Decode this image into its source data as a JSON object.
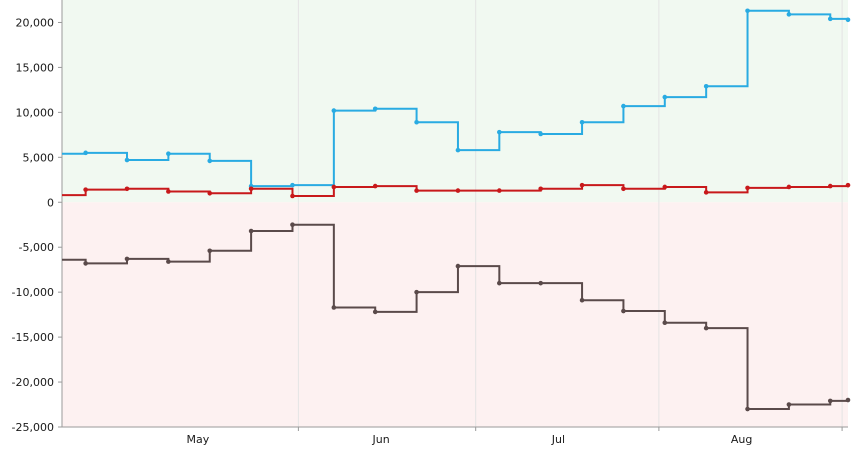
{
  "chart_data": {
    "type": "line",
    "line_shape": "step",
    "grid": true,
    "xlim": [
      "2015-04-22",
      "2015-09-02"
    ],
    "ylim": [
      -25000,
      22500
    ],
    "y_ticks": [
      -25000,
      -20000,
      -15000,
      -10000,
      -5000,
      0,
      5000,
      10000,
      15000,
      20000
    ],
    "y_tick_labels": [
      "-25,000",
      "-20,000",
      "-15,000",
      "-10,000",
      "-5,000",
      "0",
      "5,000",
      "10,000",
      "15,000",
      "20,000"
    ],
    "x_month_labels": [
      {
        "date": "2015-05-15",
        "label": "May"
      },
      {
        "date": "2015-06-15",
        "label": "Jun"
      },
      {
        "date": "2015-07-15",
        "label": "Jul"
      },
      {
        "date": "2015-08-15",
        "label": "Aug"
      }
    ],
    "x_month_boundaries": [
      "2015-06-01",
      "2015-07-01",
      "2015-08-01",
      "2015-09-01"
    ],
    "background_bands": [
      {
        "from": 0,
        "to": 22500,
        "color": "#f1f9f1"
      },
      {
        "from": -25000,
        "to": 0,
        "color": "#fdf1f1"
      }
    ],
    "x": [
      "2015-04-22",
      "2015-04-26",
      "2015-05-03",
      "2015-05-10",
      "2015-05-17",
      "2015-05-24",
      "2015-05-31",
      "2015-06-07",
      "2015-06-14",
      "2015-06-21",
      "2015-06-28",
      "2015-07-05",
      "2015-07-12",
      "2015-07-19",
      "2015-07-26",
      "2015-08-02",
      "2015-08-09",
      "2015-08-16",
      "2015-08-23",
      "2015-08-30",
      "2015-09-02"
    ],
    "series": [
      {
        "color": "#29abe2",
        "values": [
          5400,
          5500,
          4700,
          5400,
          4600,
          1800,
          1900,
          10200,
          10400,
          8900,
          5800,
          7800,
          7600,
          8900,
          10700,
          11700,
          12900,
          21300,
          20900,
          20400,
          20300
        ]
      },
      {
        "color": "#c8191b",
        "values": [
          800,
          1400,
          1500,
          1200,
          1000,
          1500,
          700,
          1700,
          1800,
          1300,
          1300,
          1300,
          1500,
          1900,
          1500,
          1700,
          1100,
          1600,
          1700,
          1800,
          1900
        ]
      },
      {
        "color": "#5a4a4a",
        "values": [
          -6400,
          -6800,
          -6300,
          -6600,
          -5400,
          -3200,
          -2500,
          -11700,
          -12200,
          -10000,
          -7100,
          -9000,
          -9000,
          -10900,
          -12100,
          -13400,
          -14000,
          -23000,
          -22500,
          -22100,
          -22000
        ]
      }
    ]
  }
}
